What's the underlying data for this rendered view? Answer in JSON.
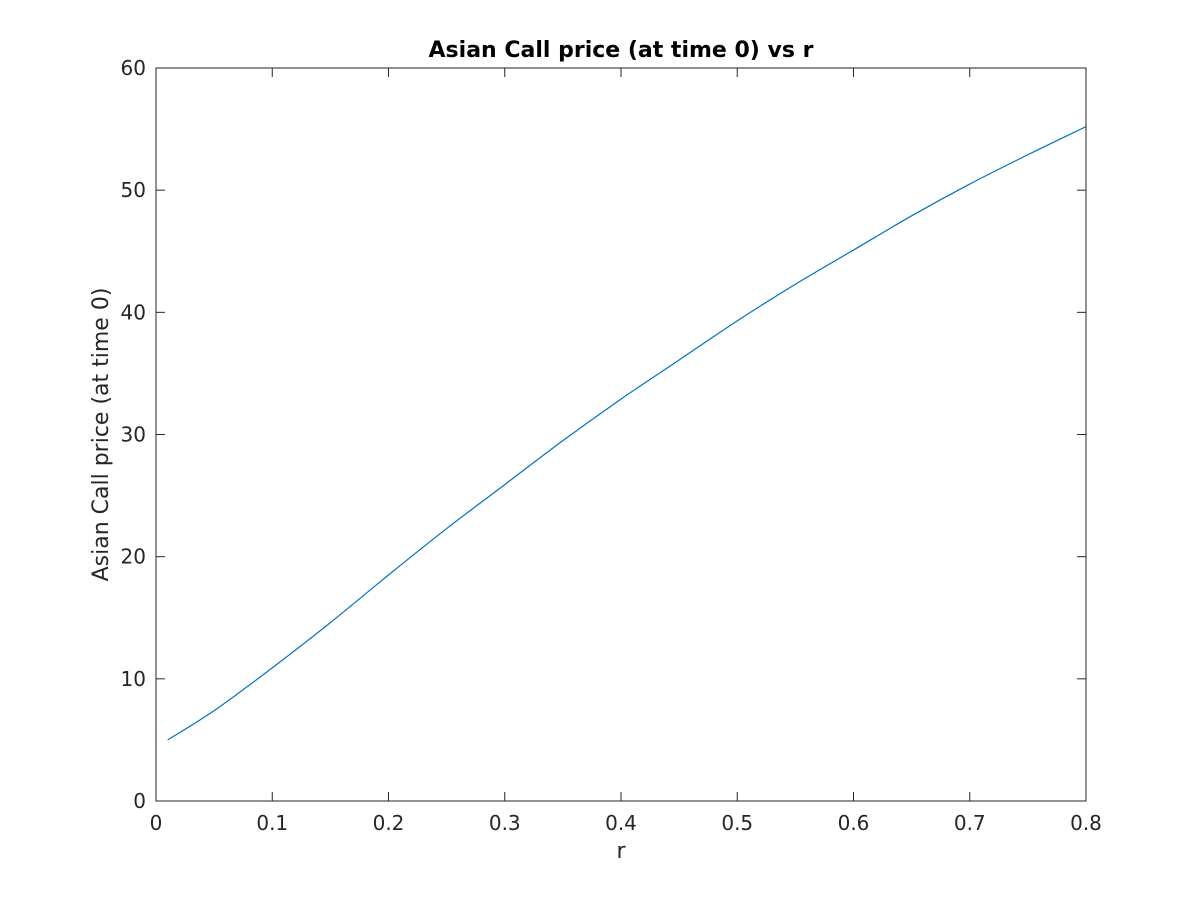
{
  "chart_data": {
    "type": "line",
    "title": "Asian Call price (at time 0) vs r",
    "xlabel": "r",
    "ylabel": "Asian Call price (at time 0)",
    "xlim": [
      0,
      0.8
    ],
    "ylim": [
      0,
      60
    ],
    "xticks": [
      0,
      0.1,
      0.2,
      0.3,
      0.4,
      0.5,
      0.6,
      0.7,
      0.8
    ],
    "xtick_labels": [
      "0",
      "0.1",
      "0.2",
      "0.3",
      "0.4",
      "0.5",
      "0.6",
      "0.7",
      "0.8"
    ],
    "yticks": [
      0,
      10,
      20,
      30,
      40,
      50,
      60
    ],
    "ytick_labels": [
      "0",
      "10",
      "20",
      "30",
      "40",
      "50",
      "60"
    ],
    "grid": false,
    "series": [
      {
        "color": "#0072BD",
        "x": [
          0.01,
          0.05,
          0.1,
          0.15,
          0.2,
          0.25,
          0.3,
          0.35,
          0.4,
          0.45,
          0.5,
          0.55,
          0.6,
          0.65,
          0.7,
          0.75,
          0.8
        ],
        "y": [
          5.0,
          7.4,
          10.9,
          14.6,
          18.5,
          22.3,
          25.9,
          29.5,
          32.9,
          36.1,
          39.3,
          42.3,
          45.1,
          47.9,
          50.5,
          52.9,
          55.2
        ]
      }
    ]
  }
}
